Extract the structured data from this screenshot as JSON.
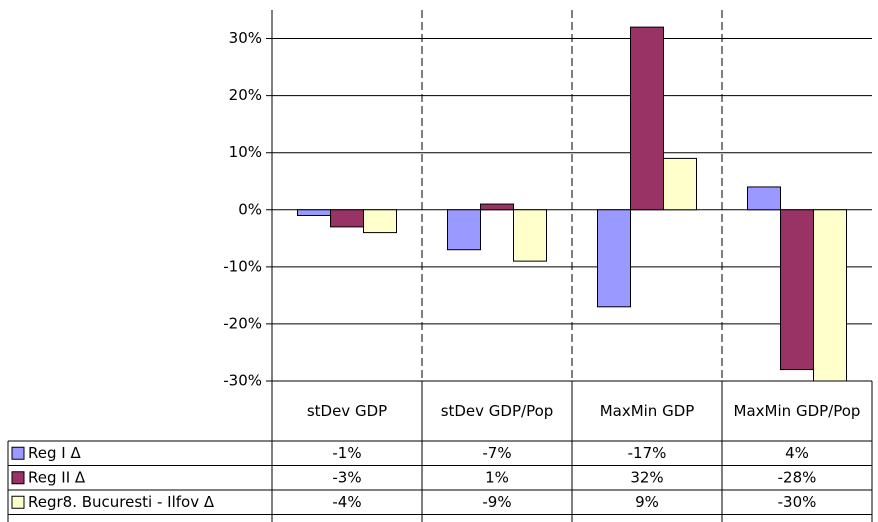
{
  "chart_data": {
    "type": "bar",
    "categories": [
      "stDev GDP",
      "stDev GDP/Pop",
      "MaxMin GDP",
      "MaxMin GDP/Pop"
    ],
    "series": [
      {
        "name": "Reg I Δ",
        "color": "#9999ff",
        "values": [
          -1,
          -7,
          -17,
          4
        ],
        "value_labels": [
          "-1%",
          "-7%",
          "-17%",
          "4%"
        ]
      },
      {
        "name": "Reg II Δ",
        "color": "#993366",
        "values": [
          -3,
          1,
          32,
          -28
        ],
        "value_labels": [
          "-3%",
          "1%",
          "32%",
          "-28%"
        ]
      },
      {
        "name": "Regr8. Bucuresti - Ilfov Δ",
        "color": "#ffffcc",
        "values": [
          -4,
          -9,
          9,
          -30
        ],
        "value_labels": [
          "-4%",
          "-9%",
          "9%",
          "-30%"
        ]
      }
    ],
    "ylim": [
      -30,
      35
    ],
    "yticks": [
      {
        "value": -30,
        "label": "-30%"
      },
      {
        "value": -20,
        "label": "-20%"
      },
      {
        "value": -10,
        "label": "-10%"
      },
      {
        "value": 0,
        "label": "0%"
      },
      {
        "value": 10,
        "label": "10%"
      },
      {
        "value": 20,
        "label": "20%"
      },
      {
        "value": 30,
        "label": "30%"
      }
    ],
    "grid": true
  }
}
